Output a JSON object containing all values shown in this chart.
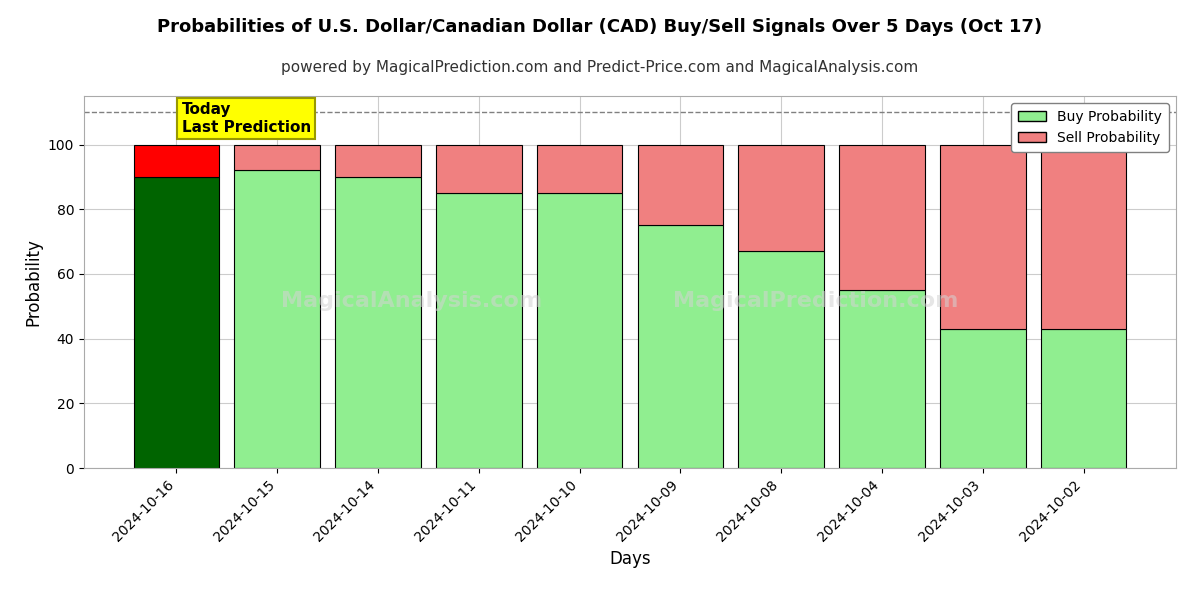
{
  "title": "Probabilities of U.S. Dollar/Canadian Dollar (CAD) Buy/Sell Signals Over 5 Days (Oct 17)",
  "subtitle": "powered by MagicalPrediction.com and Predict-Price.com and MagicalAnalysis.com",
  "xlabel": "Days",
  "ylabel": "Probability",
  "watermark1": "MagicalAnalysis.com",
  "watermark2": "MagicalPrediction.com",
  "dashed_line_y": 110,
  "ylim": [
    0,
    115
  ],
  "yticks": [
    0,
    20,
    40,
    60,
    80,
    100
  ],
  "categories": [
    "2024-10-16",
    "2024-10-15",
    "2024-10-14",
    "2024-10-11",
    "2024-10-10",
    "2024-10-09",
    "2024-10-08",
    "2024-10-04",
    "2024-10-03",
    "2024-10-02"
  ],
  "buy_values": [
    90,
    92,
    90,
    85,
    85,
    75,
    67,
    55,
    43,
    43
  ],
  "sell_values": [
    10,
    8,
    10,
    15,
    15,
    25,
    33,
    45,
    57,
    57
  ],
  "today_buy_color": "#006400",
  "today_sell_color": "#ff0000",
  "buy_color": "#90EE90",
  "sell_color": "#F08080",
  "today_label_bg": "#ffff00",
  "today_label_text": "Today\nLast Prediction",
  "legend_buy": "Buy Probability",
  "legend_sell": "Sell Probability",
  "bar_edge_color": "#000000",
  "grid_color": "#cccccc",
  "title_fontsize": 13,
  "subtitle_fontsize": 11,
  "axis_label_fontsize": 12,
  "tick_fontsize": 10
}
